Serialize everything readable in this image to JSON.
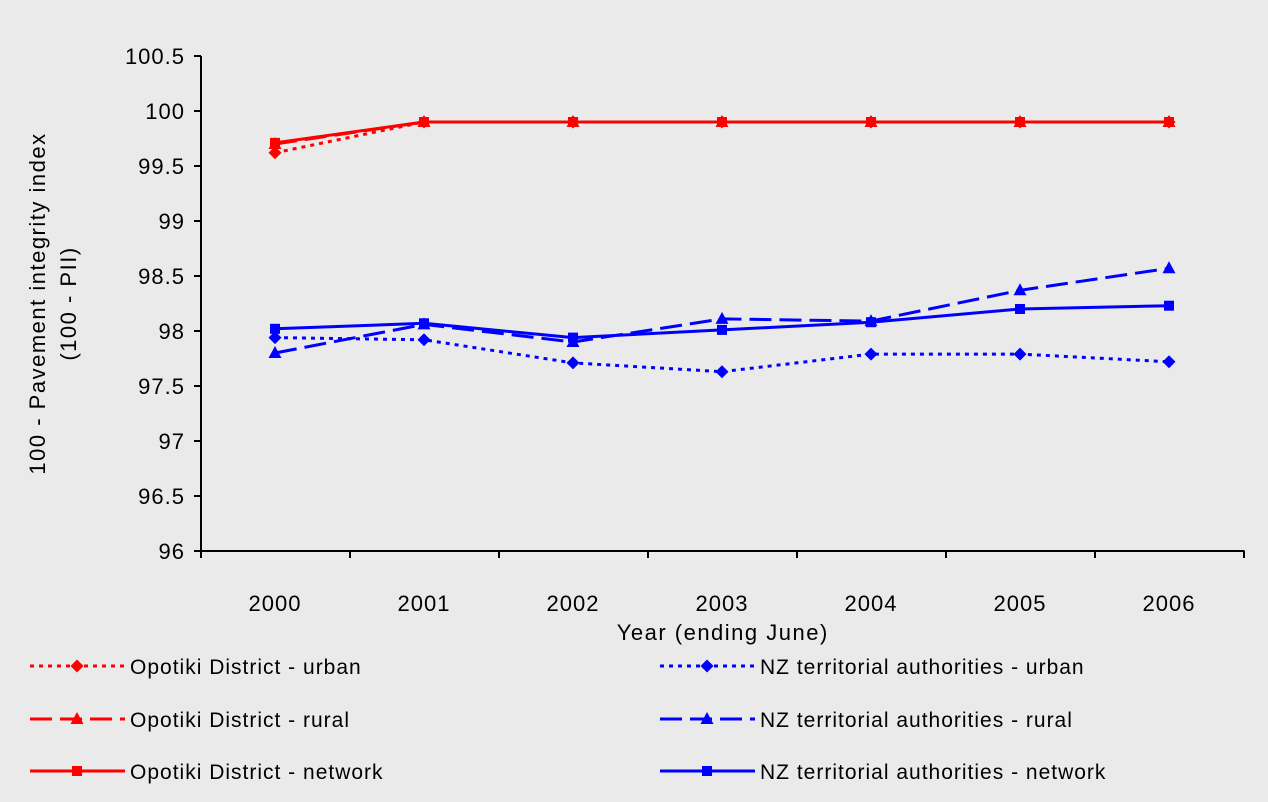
{
  "chart_data": {
    "type": "line",
    "title": "",
    "xlabel": "Year (ending June)",
    "ylabel_line1": "100 - Pavement integrity index",
    "ylabel_line2": "(100 - PII)",
    "categories": [
      "2000",
      "2001",
      "2002",
      "2003",
      "2004",
      "2005",
      "2006"
    ],
    "ylim": [
      96,
      100.5
    ],
    "yticks": [
      "96",
      "96.5",
      "97",
      "97.5",
      "98",
      "98.5",
      "99",
      "99.5",
      "100",
      "100.5"
    ],
    "grid": false,
    "legend_position": "bottom",
    "series": [
      {
        "name": "Opotiki District - urban",
        "values": [
          99.62,
          99.9,
          99.9,
          99.9,
          99.9,
          99.9,
          99.9
        ],
        "color": "#ff0000",
        "dash": "dotted",
        "marker": "diamond"
      },
      {
        "name": "NZ territorial authorities - urban",
        "values": [
          97.94,
          97.92,
          97.71,
          97.63,
          97.79,
          97.79,
          97.72
        ],
        "color": "#0000ff",
        "dash": "dotted",
        "marker": "diamond"
      },
      {
        "name": "Opotiki District - rural",
        "values": [
          99.7,
          99.9,
          99.9,
          99.9,
          99.9,
          99.9,
          99.9
        ],
        "color": "#ff0000",
        "dash": "dashed",
        "marker": "triangle"
      },
      {
        "name": "NZ territorial authorities - rural",
        "values": [
          97.8,
          98.06,
          97.9,
          98.11,
          98.09,
          98.37,
          98.57
        ],
        "color": "#0000ff",
        "dash": "dashed",
        "marker": "triangle"
      },
      {
        "name": "Opotiki District - network",
        "values": [
          99.71,
          99.9,
          99.9,
          99.9,
          99.9,
          99.9,
          99.9
        ],
        "color": "#ff0000",
        "dash": "solid",
        "marker": "square"
      },
      {
        "name": "NZ territorial authorities - network",
        "values": [
          98.02,
          98.07,
          97.94,
          98.01,
          98.08,
          98.2,
          98.23
        ],
        "color": "#0000ff",
        "dash": "solid",
        "marker": "square"
      }
    ]
  }
}
